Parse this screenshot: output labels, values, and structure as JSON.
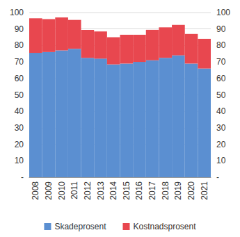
{
  "chart_data": {
    "type": "bar",
    "stacked": true,
    "categories": [
      "2008",
      "2009",
      "2010",
      "2011",
      "2012",
      "2013",
      "2014",
      "2015",
      "2016",
      "2017",
      "2018",
      "2019",
      "2020",
      "2021"
    ],
    "series": [
      {
        "name": "Skadeprosent",
        "color": "#5b8fd1",
        "values": [
          75.5,
          76,
          77,
          78,
          72.5,
          72,
          68.5,
          69,
          70,
          71,
          72.5,
          74,
          69,
          66
        ]
      },
      {
        "name": "Kostnadsprosent",
        "color": "#e8474f",
        "values": [
          21,
          20,
          20,
          17.5,
          17,
          16.5,
          16.5,
          17.5,
          16.5,
          18.5,
          18.5,
          18.5,
          18,
          18
        ]
      }
    ],
    "ylim": [
      0,
      100
    ],
    "yticks": [
      {
        "value": 0,
        "label": "-"
      },
      10,
      20,
      30,
      40,
      50,
      60,
      70,
      80,
      90,
      100
    ],
    "y2lim": [
      0,
      100
    ],
    "y2ticks": [
      {
        "value": 0,
        "label": "-"
      },
      10,
      20,
      30,
      40,
      50,
      60,
      70,
      80,
      90,
      100
    ],
    "grid": true,
    "legend": "bottom"
  }
}
